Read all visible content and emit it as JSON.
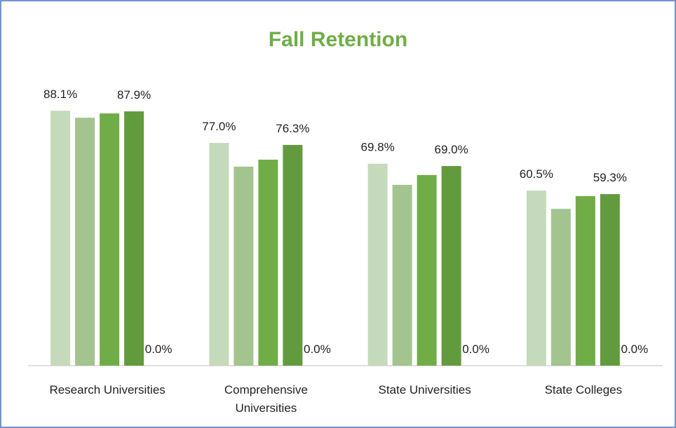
{
  "chart_data": {
    "type": "bar",
    "title": "Fall Retention",
    "categories": [
      "Research Universities",
      "Comprehensive Universities",
      "State Universities",
      "State Colleges"
    ],
    "series": [
      {
        "color": "#c5d9bb",
        "values": [
          88.1,
          77.0,
          69.8,
          60.5
        ],
        "value_labels": [
          "88.1%",
          "77.0%",
          "69.8%",
          "60.5%"
        ]
      },
      {
        "color": "#a3c48f",
        "values": [
          85.7,
          68.8,
          62.5,
          54.2
        ]
      },
      {
        "color": "#70ad47",
        "values": [
          87.2,
          71.2,
          65.9,
          58.6
        ]
      },
      {
        "color": "#629b3e",
        "values": [
          87.9,
          76.3,
          69.0,
          59.3
        ],
        "value_labels": [
          "87.9%",
          "76.3%",
          "69.0%",
          "59.3%"
        ]
      },
      {
        "color": "#4e7d31",
        "values": [
          0,
          0,
          0,
          0
        ],
        "value_labels": [
          "0.0%",
          "0.0%",
          "0.0%",
          "0.0%"
        ]
      }
    ],
    "ylim": [
      0,
      100
    ]
  }
}
